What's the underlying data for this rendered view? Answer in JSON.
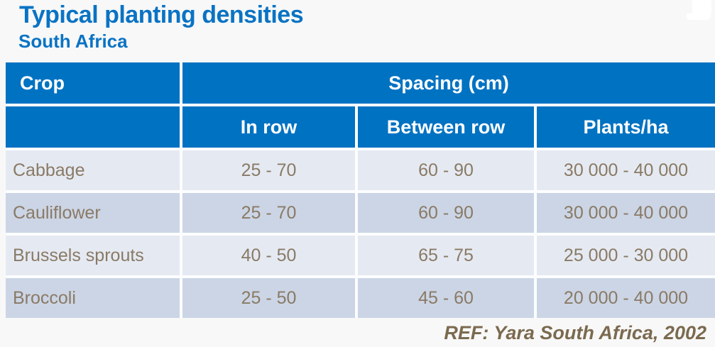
{
  "page": {
    "title": "Typical planting densities",
    "subtitle": "South Africa",
    "reference": "REF: Yara South Africa, 2002"
  },
  "colors": {
    "title_blue": "#0a73c4",
    "header_blue": "#0072c2",
    "row_light": "#e5eaf2",
    "row_dark": "#cbd5e5",
    "cell_text": "#8a7a66",
    "ref_text": "#7b6a4f",
    "page_bg": "#f8f8f8",
    "gap_white": "#fcfdfe"
  },
  "table": {
    "corner_header": "Crop",
    "group_header": "Spacing (cm)",
    "sub_headers": [
      "In row",
      "Between row",
      "Plants/ha"
    ],
    "rows": [
      {
        "crop": "Cabbage",
        "in_row": "25 - 70",
        "between_row": "60 - 90",
        "plants_ha": "30 000 - 40 000"
      },
      {
        "crop": "Cauliflower",
        "in_row": "25 - 70",
        "between_row": "60 - 90",
        "plants_ha": "30 000 - 40 000"
      },
      {
        "crop": "Brussels sprouts",
        "in_row": "40 - 50",
        "between_row": "65 - 75",
        "plants_ha": "25 000 - 30 000"
      },
      {
        "crop": "Broccoli",
        "in_row": "25 - 50",
        "between_row": "45 - 60",
        "plants_ha": "20 000 - 40 000"
      }
    ]
  }
}
